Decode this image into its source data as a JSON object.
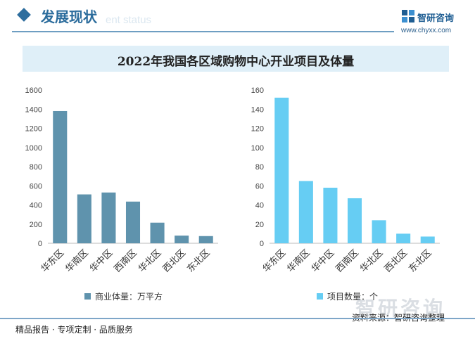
{
  "header": {
    "section_title": "发展现状",
    "section_subtitle": "ent status",
    "brand_name": "智研咨询",
    "brand_url": "www.chyxx.com"
  },
  "title": "2022年我国各区域购物中心开业项目及体量",
  "colors": {
    "left_series": "#5f93ad",
    "right_series": "#66cdf3",
    "accent": "#2b6c9c"
  },
  "chart_data": [
    {
      "type": "bar",
      "categories": [
        "华东区",
        "华南区",
        "华中区",
        "西南区",
        "华北区",
        "西北区",
        "东北区"
      ],
      "series": [
        {
          "name": "商业体量：万平方",
          "values": [
            1380,
            510,
            530,
            435,
            215,
            80,
            75
          ]
        }
      ],
      "ylim": [
        0,
        1600
      ],
      "yticks": [
        0,
        200,
        400,
        600,
        800,
        1000,
        1200,
        1400,
        1600
      ],
      "legend_position": "bottom"
    },
    {
      "type": "bar",
      "categories": [
        "华东区",
        "华南区",
        "华中区",
        "西南区",
        "华北区",
        "西北区",
        "东北区"
      ],
      "series": [
        {
          "name": "项目数量：个",
          "values": [
            152,
            65,
            58,
            47,
            24,
            10,
            7
          ]
        }
      ],
      "ylim": [
        0,
        160
      ],
      "yticks": [
        0,
        20,
        40,
        60,
        80,
        100,
        120,
        140,
        160
      ],
      "legend_position": "bottom"
    }
  ],
  "footer": {
    "left": "精品报告 · 专项定制 · 品质服务",
    "right": "资料来源：智研咨询整理",
    "brand_watermark": "智研咨询"
  }
}
